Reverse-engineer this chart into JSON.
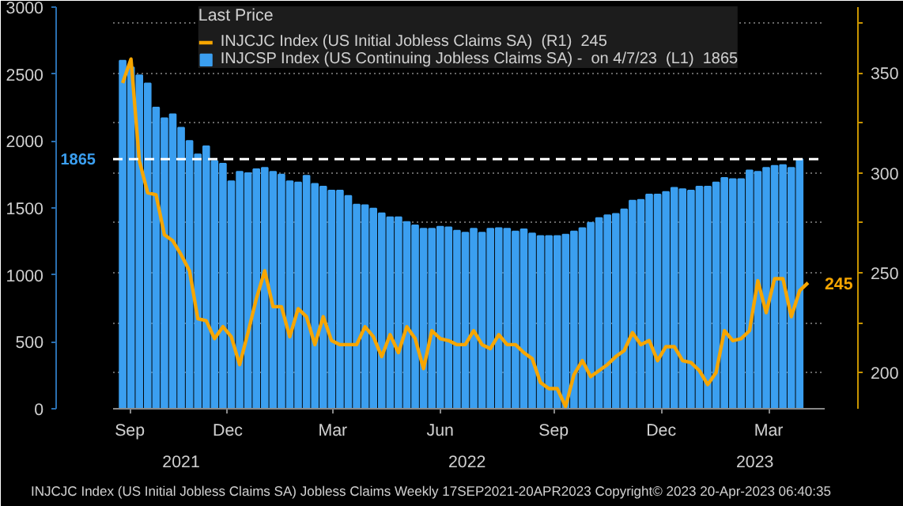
{
  "chart_data": {
    "type": "bar",
    "legend_title": "Last Price",
    "legend": "top",
    "grid": "y2",
    "xlim": [
      "2021-09-09",
      "2023-04-28"
    ],
    "xticks": [
      {
        "value": "2021-09-23",
        "label": "Sep"
      },
      {
        "value": "2021-12-14",
        "label": "Dec"
      },
      {
        "value": "2022-03-12",
        "label": "Mar"
      },
      {
        "value": "2022-06-10",
        "label": "Jun"
      },
      {
        "value": "2022-09-13",
        "label": "Sep"
      },
      {
        "value": "2022-12-12",
        "label": "Dec"
      },
      {
        "value": "2023-03-12",
        "label": "Mar"
      }
    ],
    "ylim": [
      0,
      3000
    ],
    "yticks": [
      0,
      500,
      1000,
      1500,
      2000,
      2500,
      3000
    ],
    "y2lim": [
      181.9,
      383
    ],
    "y2ticks": [
      200,
      {
        "value": 225,
        "label": null
      },
      250,
      {
        "value": 275,
        "label": null
      },
      300,
      {
        "value": 325,
        "label": null
      },
      350,
      {
        "value": 375,
        "label": null
      }
    ],
    "ref_lines": [
      {
        "axis": "y",
        "value": 1865,
        "label": "1865",
        "color": "#ffffff",
        "line_style": "dashed"
      }
    ],
    "annotations": [
      "2021",
      "2022",
      "2023",
      "INJCJC Index (US Initial Jobless Claims SA) Jobless Claims  Weekly 17SEP2021-20APR2023  Copyright© 2023  20-Apr-2023 06:40:35"
    ],
    "series": [
      {
        "type": "line",
        "axis": "y2",
        "name": "INJCJC Index (US Initial Jobless Claims SA)  (R1)  245",
        "color": "#f7a600",
        "x": [
          "2021-09-17",
          "2021-09-24",
          "2021-10-01",
          "2021-10-08",
          "2021-10-15",
          "2021-10-22",
          "2021-10-29",
          "2021-11-05",
          "2021-11-12",
          "2021-11-19",
          "2021-11-26",
          "2021-12-03",
          "2021-12-10",
          "2021-12-17",
          "2021-12-24",
          "2021-12-31",
          "2022-01-07",
          "2022-01-14",
          "2022-01-21",
          "2022-01-28",
          "2022-02-04",
          "2022-02-11",
          "2022-02-18",
          "2022-02-25",
          "2022-03-04",
          "2022-03-11",
          "2022-03-18",
          "2022-03-25",
          "2022-04-01",
          "2022-04-08",
          "2022-04-15",
          "2022-04-22",
          "2022-04-29",
          "2022-05-06",
          "2022-05-13",
          "2022-05-20",
          "2022-05-27",
          "2022-06-03",
          "2022-06-10",
          "2022-06-17",
          "2022-06-24",
          "2022-07-01",
          "2022-07-08",
          "2022-07-15",
          "2022-07-22",
          "2022-07-29",
          "2022-08-05",
          "2022-08-12",
          "2022-08-19",
          "2022-08-26",
          "2022-09-02",
          "2022-09-09",
          "2022-09-16",
          "2022-09-23",
          "2022-09-30",
          "2022-10-07",
          "2022-10-14",
          "2022-10-21",
          "2022-10-28",
          "2022-11-04",
          "2022-11-11",
          "2022-11-18",
          "2022-11-25",
          "2022-12-02",
          "2022-12-09",
          "2022-12-16",
          "2022-12-23",
          "2022-12-30",
          "2023-01-06",
          "2023-01-13",
          "2023-01-20",
          "2023-01-27",
          "2023-02-03",
          "2023-02-10",
          "2023-02-17",
          "2023-02-24",
          "2023-03-03",
          "2023-03-10",
          "2023-03-17",
          "2023-03-24",
          "2023-03-31",
          "2023-04-07",
          "2023-04-14"
        ],
        "values": [
          345,
          357,
          306,
          290,
          289,
          269,
          266,
          259,
          251,
          227,
          226,
          217,
          223,
          218,
          204,
          220,
          237,
          251,
          233,
          233,
          218,
          232,
          228,
          214,
          228,
          216,
          214,
          214,
          214,
          223,
          218,
          208,
          219,
          210,
          223,
          217,
          202,
          221,
          217,
          216,
          214,
          214,
          221,
          214,
          212,
          219,
          214,
          214,
          210,
          207,
          195,
          192,
          192,
          183,
          199,
          206,
          198,
          201,
          204,
          208,
          211,
          220,
          214,
          216,
          206,
          213,
          213,
          206,
          205,
          201,
          194,
          200,
          221,
          216,
          217,
          221,
          246,
          230,
          247,
          247,
          228,
          241,
          245
        ],
        "value_labels": [
          null,
          null,
          null,
          null,
          null,
          null,
          null,
          null,
          null,
          null,
          null,
          null,
          null,
          null,
          null,
          null,
          null,
          null,
          null,
          null,
          null,
          null,
          null,
          null,
          null,
          null,
          null,
          null,
          null,
          null,
          null,
          null,
          null,
          null,
          null,
          null,
          null,
          null,
          null,
          null,
          null,
          null,
          null,
          null,
          null,
          null,
          null,
          null,
          null,
          null,
          null,
          null,
          null,
          null,
          null,
          null,
          null,
          null,
          null,
          null,
          null,
          null,
          null,
          null,
          null,
          null,
          null,
          null,
          null,
          null,
          null,
          null,
          null,
          null,
          null,
          null,
          null,
          null,
          null,
          null,
          null,
          null,
          "245"
        ]
      },
      {
        "name": "INJCSP Index (US Continuing Jobless Claims SA) -  on 4/7/23  (L1)  1865",
        "color": "#3b9ff0",
        "x": [
          "2021-09-17",
          "2021-09-24",
          "2021-10-01",
          "2021-10-08",
          "2021-10-15",
          "2021-10-22",
          "2021-10-29",
          "2021-11-05",
          "2021-11-12",
          "2021-11-19",
          "2021-11-26",
          "2021-12-03",
          "2021-12-10",
          "2021-12-17",
          "2021-12-24",
          "2021-12-31",
          "2022-01-07",
          "2022-01-14",
          "2022-01-21",
          "2022-01-28",
          "2022-02-04",
          "2022-02-11",
          "2022-02-18",
          "2022-02-25",
          "2022-03-04",
          "2022-03-11",
          "2022-03-18",
          "2022-03-25",
          "2022-04-01",
          "2022-04-08",
          "2022-04-15",
          "2022-04-22",
          "2022-04-29",
          "2022-05-06",
          "2022-05-13",
          "2022-05-20",
          "2022-05-27",
          "2022-06-03",
          "2022-06-10",
          "2022-06-17",
          "2022-06-24",
          "2022-07-01",
          "2022-07-08",
          "2022-07-15",
          "2022-07-22",
          "2022-07-29",
          "2022-08-05",
          "2022-08-12",
          "2022-08-19",
          "2022-08-26",
          "2022-09-02",
          "2022-09-09",
          "2022-09-16",
          "2022-09-23",
          "2022-09-30",
          "2022-10-07",
          "2022-10-14",
          "2022-10-21",
          "2022-10-28",
          "2022-11-04",
          "2022-11-11",
          "2022-11-18",
          "2022-11-25",
          "2022-12-02",
          "2022-12-09",
          "2022-12-16",
          "2022-12-23",
          "2022-12-30",
          "2023-01-06",
          "2023-01-13",
          "2023-01-20",
          "2023-01-27",
          "2023-02-03",
          "2023-02-10",
          "2023-02-17",
          "2023-02-24",
          "2023-03-03",
          "2023-03-10",
          "2023-03-17",
          "2023-03-24",
          "2023-03-31",
          "2023-04-07"
        ],
        "values": [
          2600,
          2550,
          2490,
          2430,
          2250,
          2170,
          2200,
          2100,
          2000,
          1900,
          1960,
          1850,
          1830,
          1700,
          1770,
          1760,
          1790,
          1800,
          1770,
          1750,
          1700,
          1690,
          1740,
          1680,
          1660,
          1630,
          1630,
          1590,
          1525,
          1520,
          1495,
          1460,
          1430,
          1430,
          1395,
          1370,
          1345,
          1345,
          1360,
          1355,
          1330,
          1315,
          1345,
          1315,
          1345,
          1350,
          1345,
          1325,
          1340,
          1310,
          1290,
          1290,
          1290,
          1300,
          1325,
          1350,
          1390,
          1425,
          1445,
          1455,
          1490,
          1555,
          1560,
          1600,
          1600,
          1620,
          1650,
          1640,
          1630,
          1660,
          1660,
          1690,
          1725,
          1715,
          1715,
          1780,
          1770,
          1800,
          1815,
          1820,
          1800,
          1865
        ]
      }
    ]
  }
}
